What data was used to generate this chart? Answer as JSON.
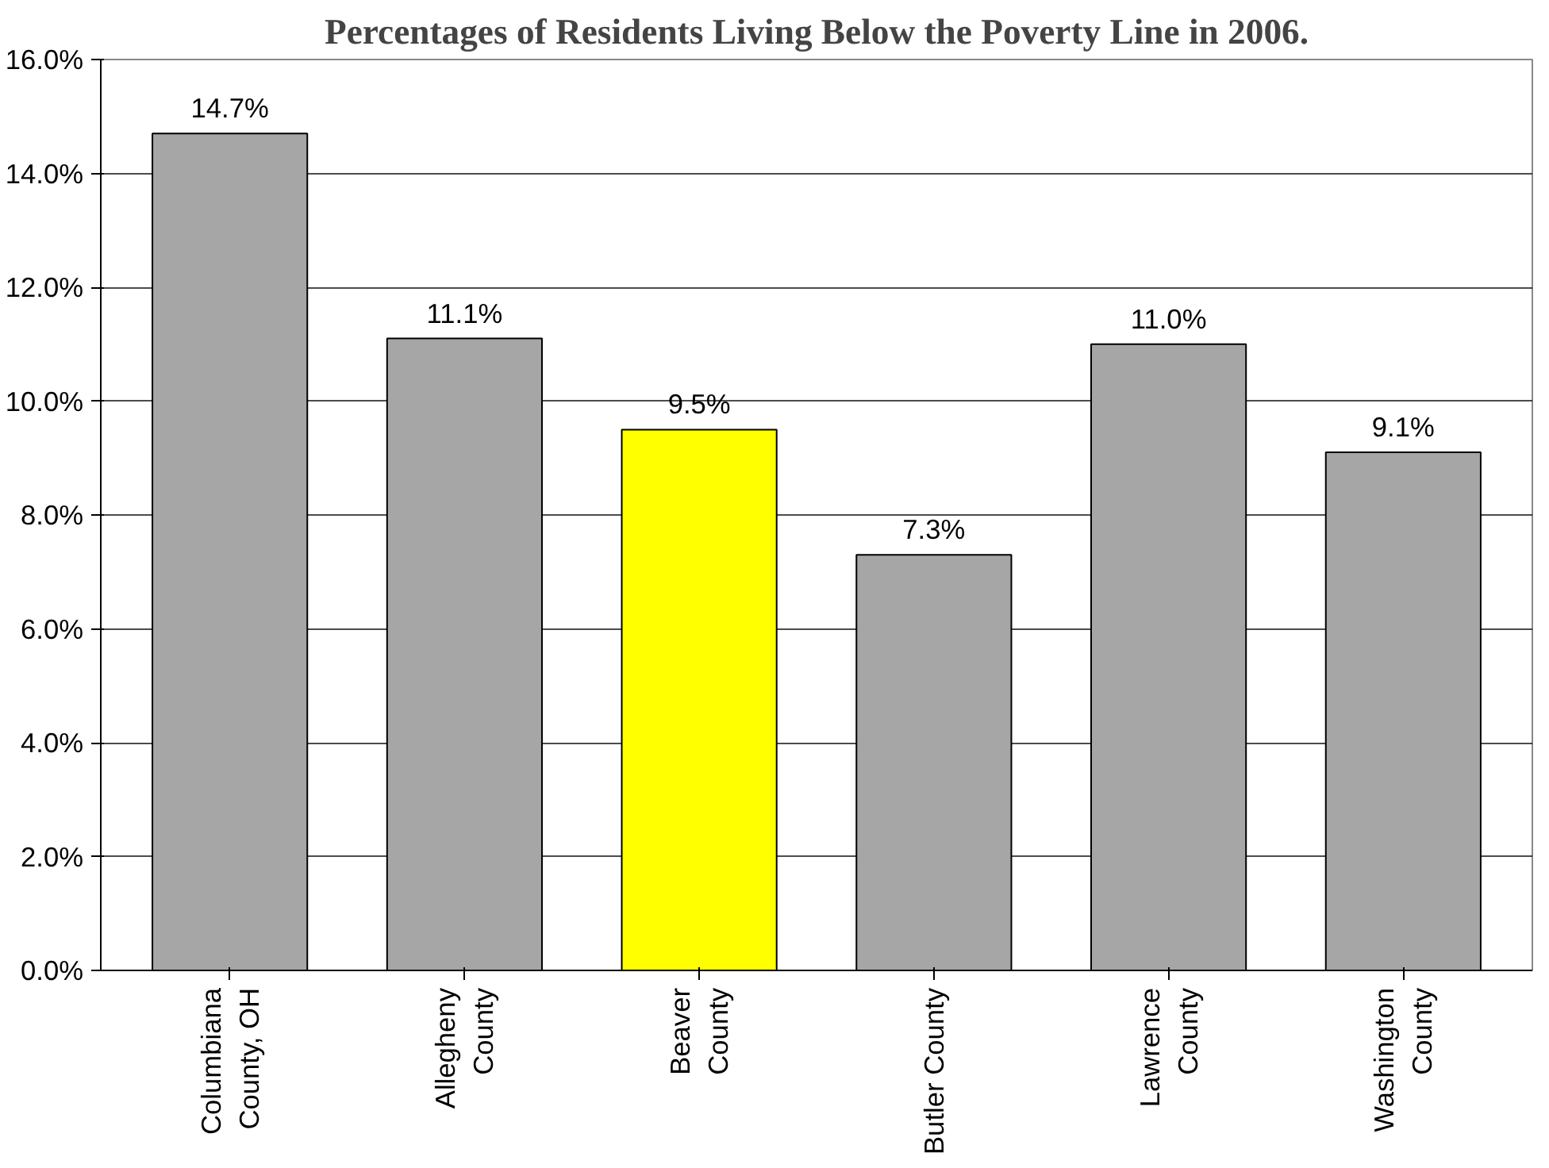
{
  "chart_data": {
    "type": "bar",
    "title": "Percentages of Residents Living Below the Poverty Line in 2006.",
    "categories": [
      "Columbiana\nCounty, OH",
      "Allegheny\nCounty",
      "Beaver\nCounty",
      "Butler County",
      "Lawrence\nCounty",
      "Washington\nCounty"
    ],
    "values": [
      14.7,
      11.1,
      9.5,
      7.3,
      11.0,
      9.1
    ],
    "colors": [
      "#a6a6a6",
      "#a6a6a6",
      "#ffff00",
      "#a6a6a6",
      "#a6a6a6",
      "#a6a6a6"
    ],
    "value_labels": [
      "14.7%",
      "11.1%",
      "9.5%",
      "7.3%",
      "11.0%",
      "9.1%"
    ],
    "ylim": [
      0,
      16
    ],
    "yticks": [
      {
        "value": 0,
        "label": "0.0%"
      },
      {
        "value": 2,
        "label": "2.0%"
      },
      {
        "value": 4,
        "label": "4.0%"
      },
      {
        "value": 6,
        "label": "6.0%"
      },
      {
        "value": 8,
        "label": "8.0%"
      },
      {
        "value": 10,
        "label": "10.0%"
      },
      {
        "value": 12,
        "label": "12.0%"
      },
      {
        "value": 14,
        "label": "14.0%"
      },
      {
        "value": 16,
        "label": "16.0%"
      }
    ],
    "grid": "y"
  }
}
